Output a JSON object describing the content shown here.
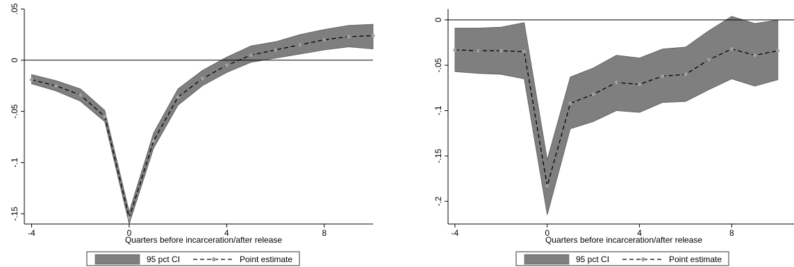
{
  "colors": {
    "ci_fill": "#7f7f7f",
    "point_marker": "#a0a0a0",
    "line": "#000000",
    "axis": "#000000"
  },
  "chart_data": [
    {
      "type": "area",
      "xlabel": "Quarters before incarceration/after release",
      "ylabel": "",
      "xlim": [
        -4.3,
        10
      ],
      "ylim": [
        -0.16,
        0.05
      ],
      "x_ticks": [
        -4,
        0,
        4,
        8
      ],
      "x_tick_labels": [
        "-4",
        "0",
        "4",
        "8"
      ],
      "y_ticks": [
        0.05,
        0,
        -0.05,
        -0.1,
        -0.15
      ],
      "y_tick_labels": [
        ".05",
        "0",
        "-.05",
        "-.1",
        "-.15"
      ],
      "reference_line_y": 0,
      "grid": false,
      "legend_position": "bottom",
      "legend": [
        "95 pct CI",
        "Point estimate"
      ],
      "x": [
        -4,
        -3,
        -2,
        -1,
        0,
        1,
        2,
        3,
        4,
        5,
        6,
        7,
        8,
        9,
        10
      ],
      "series": [
        {
          "kind": "ci_band",
          "lower": [
            -0.023,
            -0.03,
            -0.04,
            -0.06,
            -0.16,
            -0.086,
            -0.044,
            -0.025,
            -0.012,
            -0.002,
            0.002,
            0.006,
            0.01,
            0.013,
            0.011
          ],
          "upper": [
            -0.014,
            -0.02,
            -0.028,
            -0.049,
            -0.148,
            -0.071,
            -0.028,
            -0.01,
            0.003,
            0.014,
            0.018,
            0.025,
            0.03,
            0.034,
            0.035
          ]
        },
        {
          "kind": "point_estimate",
          "values": [
            -0.019,
            -0.025,
            -0.034,
            -0.055,
            -0.154,
            -0.079,
            -0.036,
            -0.018,
            -0.005,
            0.005,
            0.01,
            0.015,
            0.02,
            0.023,
            0.024
          ]
        }
      ]
    },
    {
      "type": "area",
      "xlabel": "Quarters before incarceration/after release",
      "ylabel": "",
      "xlim": [
        -4.3,
        10.7
      ],
      "ylim": [
        -0.225,
        0.012
      ],
      "x_ticks": [
        -4,
        0,
        4,
        8
      ],
      "x_tick_labels": [
        "-4",
        "0",
        "4",
        "8"
      ],
      "y_ticks": [
        0,
        -0.05,
        -0.1,
        -0.15,
        -0.2
      ],
      "y_tick_labels": [
        "0",
        "-.05",
        "-.1",
        "-.15",
        "-.2"
      ],
      "reference_line_y": 0,
      "grid": false,
      "legend_position": "bottom",
      "legend": [
        "95 pct CI",
        "Point estimate"
      ],
      "x": [
        -4,
        -3,
        -2,
        -1,
        0,
        1,
        2,
        3,
        4,
        5,
        6,
        7,
        8,
        9,
        10
      ],
      "series": [
        {
          "kind": "ci_band",
          "lower": [
            -0.057,
            -0.059,
            -0.06,
            -0.065,
            -0.215,
            -0.12,
            -0.112,
            -0.1,
            -0.102,
            -0.091,
            -0.09,
            -0.077,
            -0.065,
            -0.073,
            -0.066
          ],
          "upper": [
            -0.009,
            -0.009,
            -0.008,
            -0.003,
            -0.154,
            -0.063,
            -0.053,
            -0.039,
            -0.042,
            -0.032,
            -0.03,
            -0.012,
            0.004,
            -0.004,
            0.0
          ]
        },
        {
          "kind": "point_estimate",
          "values": [
            -0.033,
            -0.034,
            -0.034,
            -0.035,
            -0.183,
            -0.092,
            -0.082,
            -0.069,
            -0.071,
            -0.062,
            -0.06,
            -0.044,
            -0.032,
            -0.039,
            -0.034
          ]
        }
      ]
    }
  ]
}
